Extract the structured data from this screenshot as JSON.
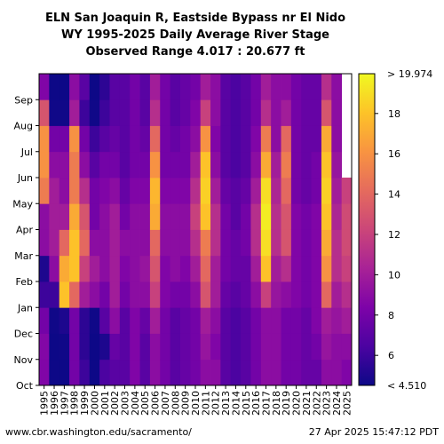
{
  "chart_data": {
    "type": "heatmap",
    "title_lines": [
      "ELN San Joaquin R, Eastside Bypass nr El Nido",
      "WY 1995-2025 Daily Average River Stage",
      "Observed Range 4.017 : 20.677 ft"
    ],
    "x_years": [
      "1995",
      "1996",
      "1997",
      "1998",
      "1999",
      "2000",
      "2001",
      "2002",
      "2003",
      "2004",
      "2005",
      "2006",
      "2007",
      "2008",
      "2009",
      "2010",
      "2011",
      "2012",
      "2013",
      "2014",
      "2015",
      "2016",
      "2017",
      "2018",
      "2019",
      "2020",
      "2021",
      "2022",
      "2023",
      "2024",
      "2025"
    ],
    "y_months": [
      "Oct",
      "Nov",
      "Dec",
      "Jan",
      "Feb",
      "Mar",
      "Apr",
      "May",
      "Jun",
      "Jul",
      "Aug",
      "Sep"
    ],
    "colorbar": {
      "min": 4.51,
      "max": 19.974,
      "tick_values": [
        6,
        8,
        10,
        12,
        14,
        16,
        18
      ],
      "min_label": "< 4.510",
      "max_label": "> 19.974",
      "colormap": "plasma"
    },
    "monthly_stage_ft": [
      [
        8.5,
        8.6,
        8.0,
        6.0,
        5.0,
        9.0,
        9.0,
        15.0,
        16.0,
        16.0,
        13.0,
        8.5
      ],
      [
        4.5,
        4.5,
        4.6,
        6.0,
        9.0,
        10.0,
        10.0,
        10.0,
        9.0,
        8.0,
        4.6,
        4.5
      ],
      [
        4.5,
        4.6,
        5.0,
        18.0,
        17.0,
        14.0,
        10.0,
        9.0,
        9.0,
        8.0,
        4.6,
        4.5
      ],
      [
        8.0,
        8.0,
        8.0,
        14.0,
        18.0,
        18.0,
        17.0,
        15.0,
        15.0,
        16.0,
        10.0,
        9.0
      ],
      [
        6.0,
        5.5,
        5.5,
        10.0,
        12.0,
        14.0,
        13.0,
        11.0,
        9.0,
        8.0,
        6.0,
        7.0
      ],
      [
        4.5,
        4.5,
        4.6,
        9.0,
        10.0,
        9.0,
        8.0,
        8.0,
        7.0,
        6.0,
        4.6,
        4.5
      ],
      [
        6.5,
        5.0,
        7.0,
        8.0,
        9.0,
        9.0,
        9.0,
        8.5,
        8.0,
        7.0,
        6.0,
        5.5
      ],
      [
        7.0,
        7.5,
        9.0,
        10.0,
        10.0,
        10.0,
        10.0,
        9.0,
        8.0,
        7.5,
        7.0,
        7.0
      ],
      [
        7.0,
        7.0,
        7.0,
        8.0,
        8.5,
        9.0,
        8.0,
        7.5,
        7.0,
        7.0,
        7.0,
        7.0
      ],
      [
        8.5,
        8.5,
        8.5,
        9.0,
        9.0,
        9.0,
        9.0,
        8.5,
        8.0,
        8.0,
        8.0,
        8.0
      ],
      [
        7.0,
        7.0,
        7.5,
        9.0,
        9.5,
        9.0,
        9.0,
        8.5,
        8.0,
        7.5,
        7.0,
        7.0
      ],
      [
        9.0,
        9.0,
        10.0,
        12.0,
        13.0,
        14.0,
        17.0,
        17.5,
        16.0,
        14.0,
        11.0,
        10.0
      ],
      [
        8.0,
        8.0,
        8.0,
        8.5,
        8.5,
        9.0,
        9.0,
        8.5,
        8.0,
        8.0,
        8.0,
        8.0
      ],
      [
        7.0,
        7.0,
        7.0,
        8.0,
        9.0,
        9.0,
        9.0,
        8.5,
        8.0,
        7.5,
        7.0,
        7.0
      ],
      [
        7.5,
        7.5,
        7.5,
        8.0,
        8.5,
        9.0,
        9.0,
        8.5,
        8.0,
        8.0,
        7.5,
        7.5
      ],
      [
        8.0,
        8.0,
        8.0,
        9.0,
        10.0,
        11.0,
        12.0,
        11.0,
        10.0,
        9.0,
        8.5,
        8.0
      ],
      [
        9.0,
        9.5,
        10.0,
        13.0,
        14.0,
        15.0,
        18.0,
        18.5,
        18.0,
        16.0,
        12.0,
        10.0
      ],
      [
        9.0,
        8.5,
        9.0,
        10.0,
        10.0,
        11.0,
        11.0,
        10.0,
        9.0,
        8.5,
        9.0,
        9.0
      ],
      [
        7.0,
        7.0,
        7.0,
        7.5,
        8.0,
        8.0,
        8.0,
        7.5,
        7.0,
        7.0,
        7.0,
        7.0
      ],
      [
        6.5,
        6.5,
        6.5,
        7.0,
        7.5,
        7.5,
        7.0,
        7.0,
        6.5,
        6.5,
        6.5,
        6.5
      ],
      [
        7.0,
        7.0,
        7.0,
        7.5,
        7.5,
        8.0,
        8.0,
        7.5,
        7.0,
        7.0,
        7.0,
        7.0
      ],
      [
        8.0,
        8.0,
        8.0,
        9.0,
        10.0,
        11.0,
        11.0,
        10.0,
        9.0,
        8.5,
        8.0,
        8.0
      ],
      [
        9.0,
        9.0,
        9.0,
        12.0,
        18.0,
        19.0,
        19.5,
        19.0,
        17.0,
        15.0,
        11.0,
        10.0
      ],
      [
        9.0,
        9.0,
        9.0,
        9.5,
        10.0,
        11.0,
        11.0,
        10.5,
        10.0,
        9.0,
        9.0,
        9.0
      ],
      [
        8.0,
        8.0,
        8.0,
        9.0,
        11.0,
        13.0,
        13.0,
        14.0,
        15.0,
        14.0,
        10.0,
        9.0
      ],
      [
        8.0,
        8.0,
        8.0,
        8.5,
        8.5,
        8.5,
        8.5,
        8.0,
        8.0,
        8.0,
        8.0,
        8.0
      ],
      [
        7.5,
        7.5,
        7.5,
        8.0,
        8.0,
        8.0,
        8.0,
        7.5,
        7.5,
        7.5,
        7.5,
        7.5
      ],
      [
        7.5,
        8.0,
        8.5,
        8.5,
        8.5,
        8.5,
        8.5,
        8.0,
        8.0,
        7.5,
        7.5,
        7.5
      ],
      [
        9.0,
        9.5,
        10.0,
        14.0,
        16.0,
        17.0,
        18.0,
        18.5,
        18.0,
        17.0,
        13.0,
        11.0
      ],
      [
        9.0,
        9.0,
        9.5,
        10.0,
        11.0,
        11.0,
        10.5,
        10.0,
        9.5,
        9.0,
        9.0,
        9.0
      ],
      [
        8.5,
        9.0,
        10.0,
        11.0,
        12.0,
        12.5,
        12.5,
        12.0,
        null,
        null,
        null,
        null
      ]
    ]
  },
  "footer": {
    "source_url": "www.cbr.washington.edu/sacramento/",
    "timestamp": "27 Apr 2025 15:47:12 PDT"
  }
}
